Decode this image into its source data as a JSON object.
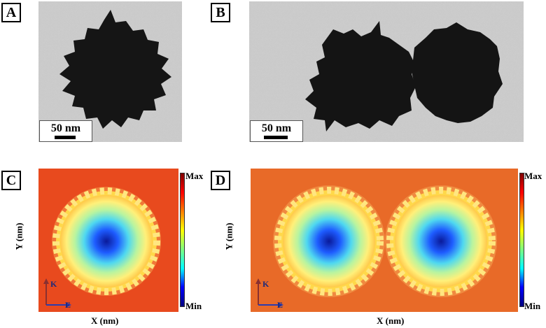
{
  "panels": {
    "a": {
      "label": "A",
      "scale_bar": "50 nm"
    },
    "b": {
      "label": "B",
      "scale_bar": "50 nm"
    },
    "c": {
      "label": "C",
      "x_label": "X (nm)",
      "y_label": "Y (nm)",
      "colorbar_max": "Max",
      "colorbar_min": "Min",
      "k_label": "K",
      "e_label": "E"
    },
    "d": {
      "label": "D",
      "x_label": "X (nm)",
      "y_label": "Y (nm)",
      "colorbar_max": "Max",
      "colorbar_min": "Min",
      "k_label": "K",
      "e_label": "E"
    }
  },
  "colors": {
    "field_background": "#e84a1e",
    "field_rim": "#ffd84a",
    "field_center": "#0a1aa0",
    "tem_background": "#c9c9c9",
    "particle": "#141414",
    "vector_k": "#8a3030",
    "vector_e": "#2a3cb0"
  },
  "colormap": [
    "#00007f",
    "#0000ff",
    "#00ffff",
    "#7fff7f",
    "#ffff00",
    "#ff7f00",
    "#ff0000",
    "#7f0000"
  ]
}
